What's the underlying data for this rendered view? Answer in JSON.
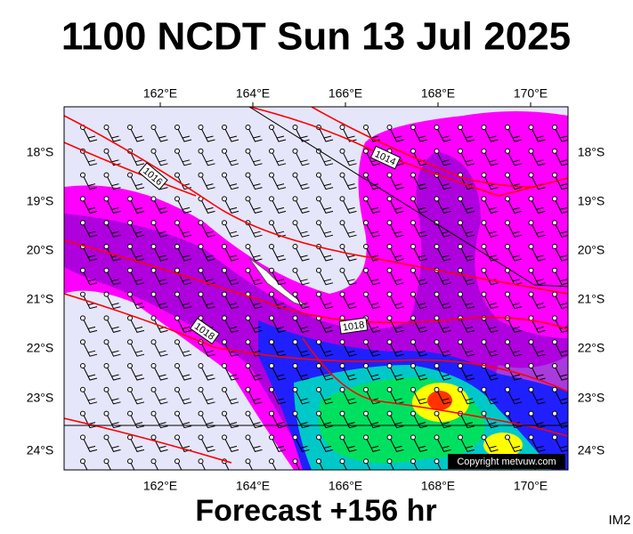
{
  "header": {
    "title": "1100 NCDT Sun 13 Jul 2025"
  },
  "map": {
    "lon_labels": [
      "162°E",
      "164°E",
      "166°E",
      "168°E",
      "170°E"
    ],
    "lat_labels": [
      "18°S",
      "19°S",
      "20°S",
      "21°S",
      "22°S",
      "23°S",
      "24°S"
    ],
    "isobar_labels": [
      "1016",
      "1014",
      "1018",
      "1018"
    ],
    "copyright": "Copyright metvuw.com"
  },
  "footer": {
    "forecast": "Forecast +156 hr",
    "image_id": "IM2"
  }
}
